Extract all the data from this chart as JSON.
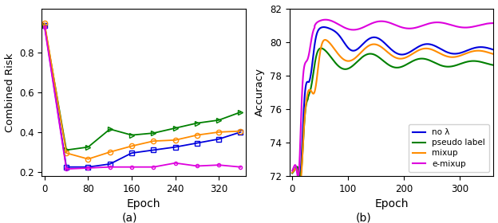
{
  "subplot_a": {
    "title": "(a)",
    "xlabel": "Epoch",
    "ylabel": "Combined Risk",
    "xlim": [
      -5,
      370
    ],
    "ylim": [
      0.18,
      1.02
    ],
    "xticks": [
      0,
      80,
      160,
      240,
      320
    ],
    "yticks": [
      0.2,
      0.4,
      0.6,
      0.8
    ],
    "series": {
      "no_lambda": {
        "color": "#0000dd",
        "marker": "s",
        "x": [
          0,
          40,
          80,
          120,
          160,
          200,
          240,
          280,
          320,
          360
        ],
        "y": [
          0.935,
          0.225,
          0.225,
          0.24,
          0.295,
          0.31,
          0.325,
          0.345,
          0.365,
          0.4
        ]
      },
      "pseudo_label": {
        "color": "#008000",
        "marker": ">",
        "x": [
          0,
          40,
          80,
          120,
          160,
          200,
          240,
          280,
          320,
          360
        ],
        "y": [
          0.935,
          0.31,
          0.325,
          0.415,
          0.385,
          0.395,
          0.42,
          0.445,
          0.46,
          0.5
        ]
      },
      "mixup": {
        "color": "#ff8c00",
        "marker": "o",
        "x": [
          0,
          40,
          80,
          120,
          160,
          200,
          240,
          280,
          320,
          360
        ],
        "y": [
          0.945,
          0.295,
          0.265,
          0.3,
          0.33,
          0.355,
          0.36,
          0.385,
          0.4,
          0.405
        ]
      },
      "e_mixup": {
        "color": "#dd00dd",
        "marker": "o",
        "x": [
          0,
          40,
          80,
          120,
          160,
          200,
          240,
          280,
          320,
          360
        ],
        "y": [
          0.925,
          0.215,
          0.22,
          0.225,
          0.225,
          0.225,
          0.245,
          0.23,
          0.235,
          0.225
        ]
      }
    }
  },
  "subplot_b": {
    "title": "(b)",
    "xlabel": "Epoch",
    "ylabel": "Accuracy",
    "xlim": [
      -5,
      360
    ],
    "ylim": [
      72,
      82
    ],
    "xticks": [
      0,
      100,
      200,
      300
    ],
    "yticks": [
      72,
      74,
      76,
      78,
      80,
      82
    ],
    "legend": {
      "no_lambda": "no λ",
      "pseudo_label": "pseudo label",
      "mixup": "mixup",
      "e_mixup": "e-mixup"
    },
    "colors": {
      "no_lambda": "#0000dd",
      "pseudo_label": "#008000",
      "mixup": "#ff8c00",
      "e_mixup": "#dd00dd"
    }
  }
}
